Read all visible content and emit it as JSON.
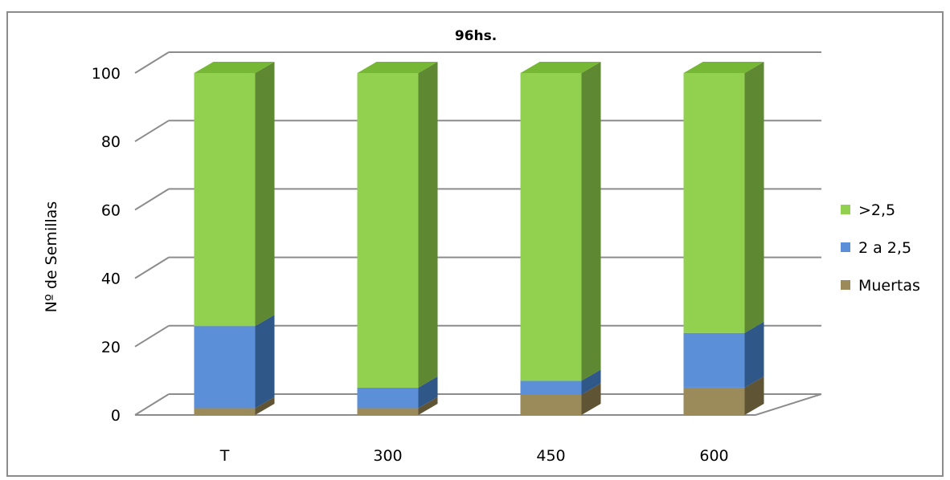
{
  "chart_data": {
    "type": "bar",
    "stacked": true,
    "three_d": true,
    "title": "96hs.",
    "xlabel": "",
    "ylabel": "Nº de Semillas",
    "ylim": [
      0,
      100
    ],
    "yticks": [
      0,
      20,
      40,
      60,
      80,
      100
    ],
    "grid": true,
    "legend_position": "right",
    "categories": [
      "T",
      "300",
      "450",
      "600"
    ],
    "series": [
      {
        "name": "Muertas",
        "values": [
          2,
          2,
          6,
          8
        ],
        "color": "#9b8a5a",
        "side_color": "#5f5535",
        "top_color": "#b3a474"
      },
      {
        "name": "2 a 2,5",
        "values": [
          24,
          6,
          4,
          16
        ],
        "color": "#5b8fd8",
        "side_color": "#2f5787",
        "top_color": "#80a9e3"
      },
      {
        "name": ">2,5",
        "values": [
          74,
          92,
          90,
          76
        ],
        "color": "#92d050",
        "side_color": "#5e8932",
        "top_color": "#76b836"
      }
    ],
    "legend_order": [
      ">2,5",
      "2 a 2,5",
      "Muertas"
    ]
  }
}
